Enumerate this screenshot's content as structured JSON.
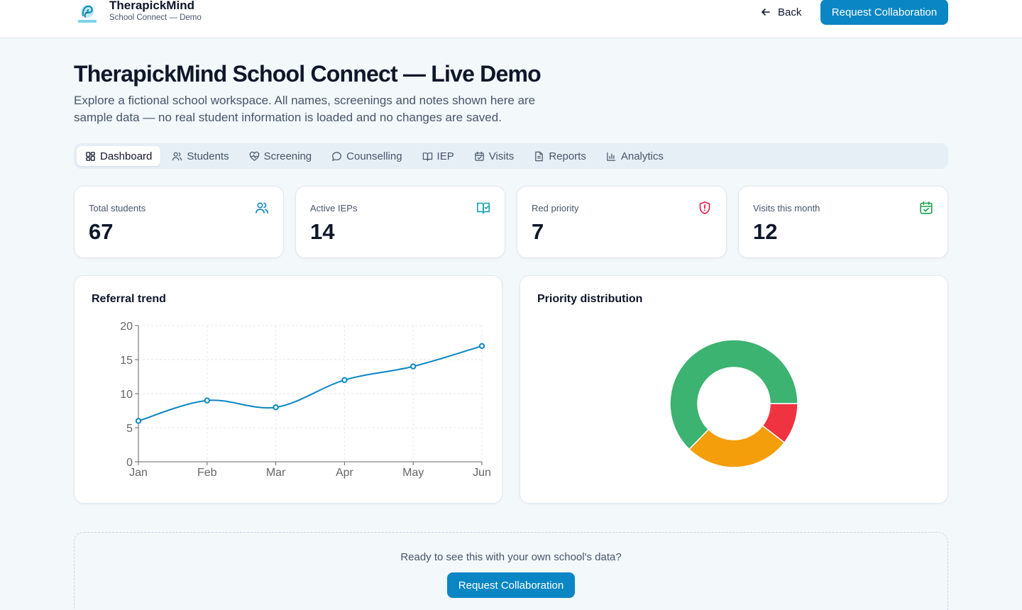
{
  "brand": {
    "name": "TherapickMind",
    "subtitle": "School Connect — Demo",
    "logo_icon": "brain-wave-logo"
  },
  "header": {
    "back_label": "Back",
    "cta_label": "Request Collaboration"
  },
  "page": {
    "title": "TherapickMind School Connect — Live Demo",
    "description": "Explore a fictional school workspace. All names, screenings and notes shown here are sample data — no real student information is loaded and no changes are saved."
  },
  "tabs": [
    {
      "label": "Dashboard",
      "icon": "dashboard-icon",
      "active": true
    },
    {
      "label": "Students",
      "icon": "users-icon"
    },
    {
      "label": "Screening",
      "icon": "heart-pulse-icon"
    },
    {
      "label": "Counselling",
      "icon": "chat-icon"
    },
    {
      "label": "IEP",
      "icon": "book-icon"
    },
    {
      "label": "Visits",
      "icon": "calendar-check-icon"
    },
    {
      "label": "Reports",
      "icon": "document-icon"
    },
    {
      "label": "Analytics",
      "icon": "bar-chart-icon"
    }
  ],
  "stats": [
    {
      "label": "Total students",
      "value": "67",
      "icon": "users-icon",
      "color": "#0a86c4"
    },
    {
      "label": "Active IEPs",
      "value": "14",
      "icon": "book-icon",
      "color": "#0fa3b1"
    },
    {
      "label": "Red priority",
      "value": "7",
      "icon": "shield-alert-icon",
      "color": "#e11d48"
    },
    {
      "label": "Visits this month",
      "value": "12",
      "icon": "calendar-check-icon",
      "color": "#16a34a"
    }
  ],
  "charts": {
    "referral_title": "Referral trend",
    "priority_title": "Priority distribution"
  },
  "chart_data": [
    {
      "type": "line",
      "title": "Referral trend",
      "categories": [
        "Jan",
        "Feb",
        "Mar",
        "Apr",
        "May",
        "Jun"
      ],
      "values": [
        6,
        9,
        8,
        12,
        14,
        17
      ],
      "ylim": [
        0,
        20
      ],
      "yticks": [
        0,
        5,
        10,
        15,
        20
      ],
      "grid": true,
      "color": "#0a86c4"
    },
    {
      "type": "pie",
      "title": "Priority distribution",
      "donut": true,
      "values": [
        42,
        18,
        7
      ],
      "colors": [
        "#3cb371",
        "#f59e0b",
        "#ef3340"
      ]
    }
  ],
  "cta": {
    "text": "Ready to see this with your own school's data?",
    "button_label": "Request Collaboration"
  }
}
